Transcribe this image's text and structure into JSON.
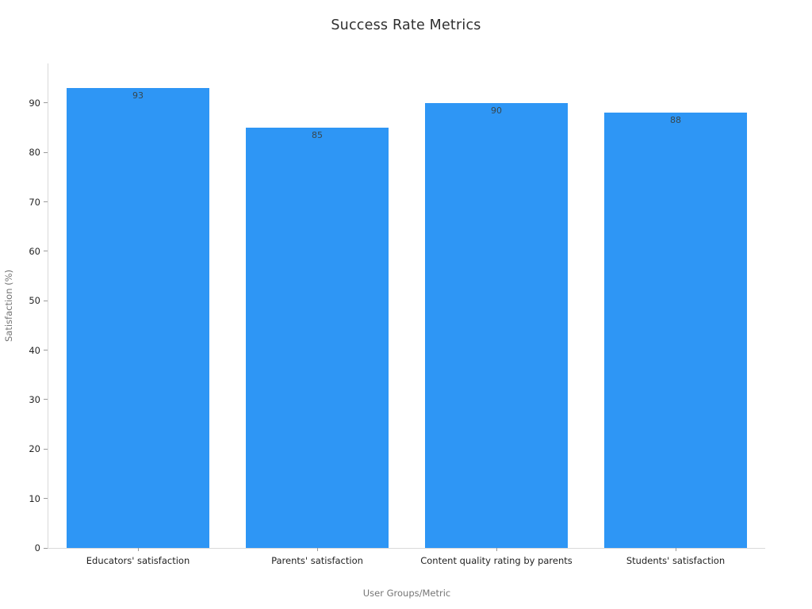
{
  "chart_data": {
    "type": "bar",
    "title": "Success Rate Metrics",
    "xlabel": "User Groups/Metric",
    "ylabel": "Satisfaction (%)",
    "categories": [
      "Educators' satisfaction",
      "Parents' satisfaction",
      "Content quality rating by parents",
      "Students' satisfaction"
    ],
    "values": [
      93,
      85,
      90,
      88
    ],
    "value_labels": [
      "93",
      "85",
      "90",
      "88"
    ],
    "ylim": [
      0,
      98
    ],
    "yticks": [
      0,
      10,
      20,
      30,
      40,
      50,
      60,
      70,
      80,
      90
    ],
    "grid": false,
    "legend": false,
    "bar_color": "#2e96f5",
    "value_label_color": "#37474f",
    "axis_line_color": "#d9d9d9",
    "tick_mark_color": "#9a9a9a",
    "tick_text_color": "#262626",
    "axis_title_color": "#757575",
    "title_color": "#2f2f2f"
  }
}
